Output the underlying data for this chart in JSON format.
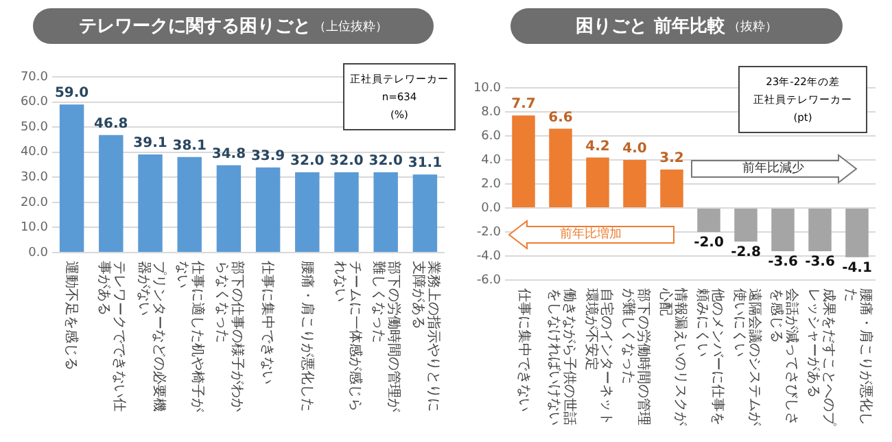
{
  "chart_data": [
    {
      "type": "bar",
      "title": "テレワークに関する困りごと",
      "subtitle": "（上位抜粋）",
      "categories": [
        "運動不足を感じる",
        "テレワークでできない仕事がある",
        "プリンターなどの必要機器がない",
        "仕事に適した机や椅子がない",
        "部下の仕事の様子がわからなくなった",
        "仕事に集中できない",
        "腰痛・肩こりが悪化した",
        "チームに一体感が感じられない",
        "部下の労働時間の管理が難しくなった",
        "業務上の指示やりとりに支障がある"
      ],
      "values": [
        59.0,
        46.8,
        39.1,
        38.1,
        34.8,
        33.9,
        32.0,
        32.0,
        32.0,
        31.1
      ],
      "value_labels": [
        "59.0",
        "46.8",
        "39.1",
        "38.1",
        "34.8",
        "33.9",
        "32.0",
        "32.0",
        "32.0",
        "31.1"
      ],
      "color": "#5b9bd5",
      "ylim": [
        0,
        70
      ],
      "yticks": [
        {
          "value": 0,
          "label": "0.0"
        },
        {
          "value": 10,
          "label": "10.0"
        },
        {
          "value": 20,
          "label": "20.0"
        },
        {
          "value": 30,
          "label": "30.0"
        },
        {
          "value": 40,
          "label": "40.0"
        },
        {
          "value": 50,
          "label": "50.0"
        },
        {
          "value": 60,
          "label": "60.0"
        },
        {
          "value": 70,
          "label": "70.0"
        }
      ],
      "grid": "y",
      "annotations": [
        "正社員テレワーカー",
        "n=634",
        "(%)"
      ]
    },
    {
      "type": "bar",
      "title": "困りごと 前年比較",
      "subtitle": "（抜粋）",
      "categories": [
        "仕事に集中できない",
        "働きながら子供の世話をしなければいけない",
        "自宅のインターネット環境が不安定",
        "部下の労働時間の管理が難しくなった",
        "情報漏えいのリスクが心配",
        "他のメンバーに仕事を頼みにくい",
        "遠隔会議のシステムが使いにくい",
        "会話が減ってさびしさを感じる",
        "成果をだすことへのプレッシャーがある",
        "腰痛・肩こりが悪化した"
      ],
      "values": [
        7.7,
        6.6,
        4.2,
        4.0,
        3.2,
        -2.0,
        -2.8,
        -3.6,
        -3.6,
        -4.1
      ],
      "value_labels": [
        "7.7",
        "6.6",
        "4.2",
        "4.0",
        "3.2",
        "-2.0",
        "-2.8",
        "-3.6",
        "-3.6",
        "-4.1"
      ],
      "colors": [
        "#ed7d31",
        "#ed7d31",
        "#ed7d31",
        "#ed7d31",
        "#ed7d31",
        "#a5a5a5",
        "#a5a5a5",
        "#a5a5a5",
        "#a5a5a5",
        "#a5a5a5"
      ],
      "ylim": [
        -6,
        10
      ],
      "yticks": [
        {
          "value": -6,
          "label": "-6.0"
        },
        {
          "value": -4,
          "label": "-4.0"
        },
        {
          "value": -2,
          "label": "-2.0"
        },
        {
          "value": 0,
          "label": "0.0"
        },
        {
          "value": 2,
          "label": "2.0"
        },
        {
          "value": 4,
          "label": "4.0"
        },
        {
          "value": 6,
          "label": "6.0"
        },
        {
          "value": 8,
          "label": "8.0"
        },
        {
          "value": 10,
          "label": "10.0"
        }
      ],
      "grid": "y",
      "annotations": [
        "23年-22年の差",
        "正社員テレワーカー",
        "(pt)",
        "前年比減少",
        "前年比増加"
      ]
    }
  ]
}
